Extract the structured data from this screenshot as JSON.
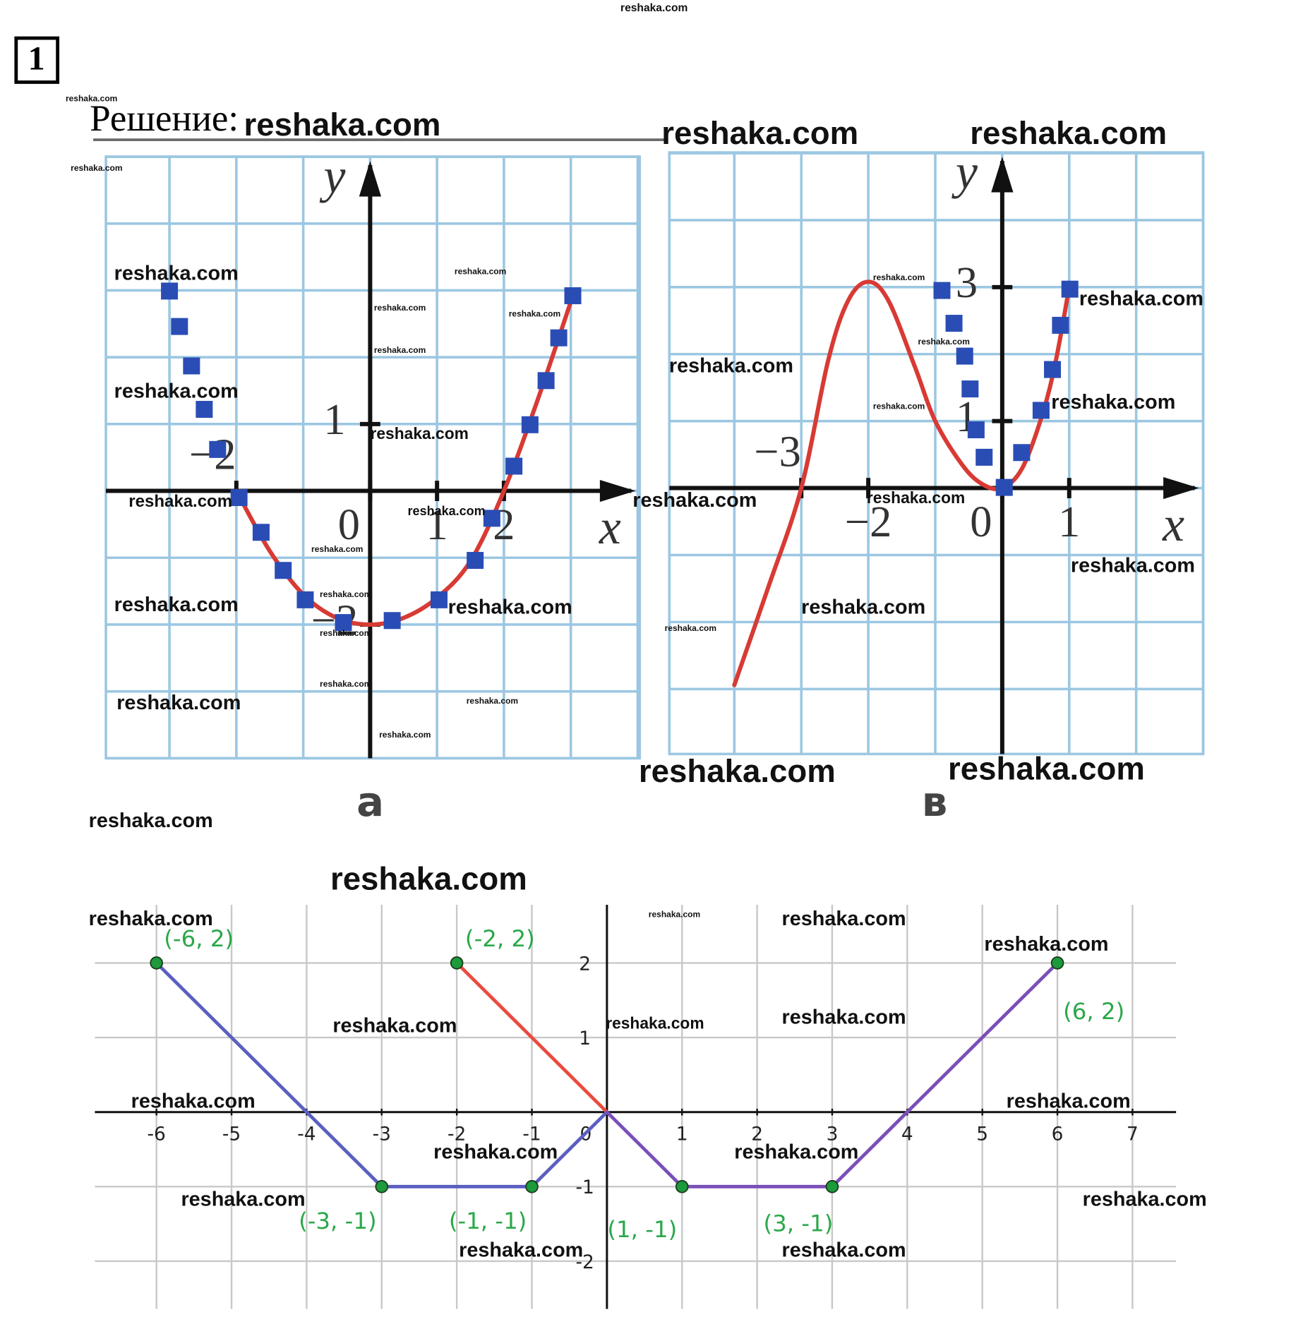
{
  "header": {
    "number": "1",
    "title": "Решение:"
  },
  "watermarks": [
    "reshaka.com",
    "reshaka.com",
    "reshaka.com",
    "reshaka.com",
    "reshaka.com",
    "reshaka.com",
    "reshaka.com",
    "reshaka.com",
    "reshaka.com",
    "reshaka.com",
    "reshaka.com",
    "reshaka.com",
    "reshaka.com",
    "reshaka.com",
    "reshaka.com",
    "reshaka.com",
    "reshaka.com",
    "reshaka.com",
    "reshaka.com",
    "reshaka.com",
    "reshaka.com",
    "reshaka.com",
    "reshaka.com",
    "reshaka.com",
    "reshaka.com",
    "reshaka.com",
    "reshaka.com",
    "reshaka.com",
    "reshaka.com",
    "reshaka.com",
    "reshaka.com",
    "reshaka.com",
    "reshaka.com",
    "reshaka.com",
    "reshaka.com",
    "reshaka.com",
    "reshaka.com",
    "reshaka.com",
    "reshaka.com",
    "reshaka.com",
    "reshaka.com",
    "reshaka.com",
    "reshaka.com",
    "reshaka.com",
    "reshaka.com",
    "reshaka.com",
    "reshaka.com",
    "reshaka.com",
    "reshaka.com",
    "reshaka.com",
    "reshaka.com",
    "reshaka.com",
    "reshaka.com",
    "reshaka.com"
  ],
  "chart_data": [
    {
      "type": "line",
      "caption": "а",
      "xlabel": "x",
      "ylabel": "y",
      "xlim": [
        -3.95,
        4.03
      ],
      "ylim": [
        -4,
        5
      ],
      "xticks": [
        {
          "value": -2,
          "label": "−2"
        },
        0,
        1,
        2
      ],
      "yticks": [
        1,
        {
          "value": -2,
          "label": "−2"
        }
      ],
      "grid": true,
      "series": [
        {
          "style": "curve",
          "color": "#d83a34",
          "x": [
            -2,
            -1.5,
            -1,
            -0.5,
            0,
            0.5,
            1,
            1.5,
            2,
            2.5,
            3.03
          ],
          "values": [
            0,
            -0.9,
            -1.55,
            -1.9,
            -2,
            -1.9,
            -1.6,
            -1.05,
            0,
            1.35,
            2.92
          ]
        },
        {
          "style": "squares",
          "color": "#2a4db5",
          "x": [
            -3,
            -2.85,
            -2.67,
            -2.48,
            -2.28,
            -1.96,
            -1.63,
            -1.3,
            -0.97,
            -0.4,
            0.33,
            1.03,
            1.57,
            1.82,
            2.15,
            2.39,
            2.63,
            2.82,
            3.03
          ],
          "values": [
            2.99,
            2.46,
            1.87,
            1.22,
            0.62,
            -0.1,
            -0.62,
            -1.19,
            -1.63,
            -1.97,
            -1.94,
            -1.63,
            -1.04,
            -0.41,
            0.37,
            0.99,
            1.65,
            2.29,
            2.92
          ]
        }
      ]
    },
    {
      "type": "line",
      "caption": "в",
      "xlabel": "x",
      "ylabel": "y",
      "xlim": [
        -4.97,
        3
      ],
      "ylim": [
        -3.97,
        5.01
      ],
      "xticks": [
        {
          "value": -3,
          "label": "−3"
        },
        {
          "value": -2,
          "label": "−2"
        },
        0,
        1
      ],
      "yticks": [
        1,
        3
      ],
      "grid": true,
      "series": [
        {
          "style": "curve",
          "color": "#d83a34",
          "x": [
            -4,
            -3.5,
            -3,
            -2.6,
            -2.3,
            -2,
            -1.7,
            -1.3,
            -1,
            -0.6,
            -0.3,
            0,
            0.3,
            0.6,
            0.8,
            1
          ],
          "values": [
            -2.94,
            -1.5,
            0,
            1.9,
            2.8,
            3.08,
            2.8,
            1.8,
            1,
            0.35,
            0.06,
            0,
            0.3,
            1.1,
            1.9,
            3
          ]
        },
        {
          "style": "squares",
          "color": "#2a4db5",
          "x": [
            -0.9,
            -0.72,
            -0.56,
            -0.48,
            -0.39,
            -0.27,
            0.03,
            0.29,
            0.58,
            0.75,
            0.87,
            1.01
          ],
          "values": [
            2.95,
            2.46,
            1.97,
            1.48,
            0.87,
            0.46,
            0.01,
            0.53,
            1.16,
            1.77,
            2.43,
            2.97
          ]
        }
      ]
    },
    {
      "type": "line",
      "xlim": [
        -6.82,
        7.58
      ],
      "ylim": [
        -2.64,
        2.78
      ],
      "xticks": [
        -6,
        -5,
        -4,
        -3,
        -2,
        -1,
        0,
        1,
        2,
        3,
        4,
        5,
        6,
        7
      ],
      "yticks": [
        -2,
        -1,
        1,
        2
      ],
      "grid": true,
      "series": [
        {
          "style": "line",
          "color": "#5a5fc0",
          "x": [
            -6,
            -3,
            -1,
            0
          ],
          "values": [
            2,
            -1,
            -1,
            0
          ]
        },
        {
          "style": "line",
          "color": "#ea4b3f",
          "x": [
            -2,
            0
          ],
          "values": [
            2,
            0
          ]
        },
        {
          "style": "line",
          "color": "#7a4fb8",
          "x": [
            0,
            1,
            3,
            6
          ],
          "values": [
            0,
            -1,
            -1,
            2
          ]
        }
      ],
      "points": {
        "color": "#1c9a3c",
        "x": [
          -6,
          -2,
          6,
          -3,
          -1,
          1,
          3
        ],
        "values": [
          2,
          2,
          2,
          -1,
          -1,
          -1,
          -1
        ],
        "value_labels": [
          "(-6, 2)",
          "(-2, 2)",
          "(6, 2)",
          "(-3, -1)",
          "(-1, -1)",
          "(1, -1)",
          "(3, -1)"
        ]
      }
    }
  ]
}
